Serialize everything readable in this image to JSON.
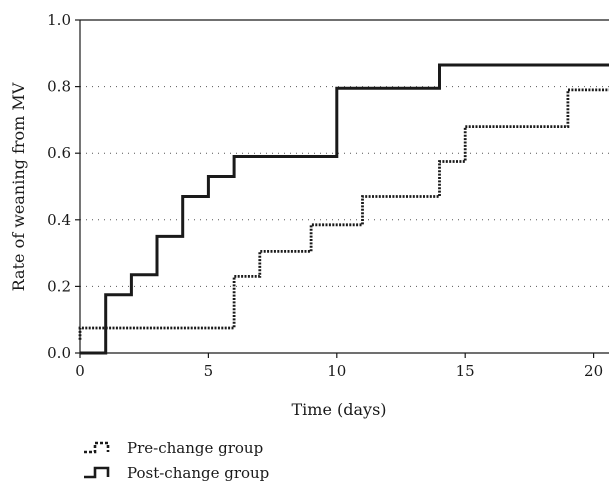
{
  "chart_data": {
    "type": "line",
    "subtype": "step",
    "title": "",
    "xlabel": "Time (days)",
    "ylabel": "Rate of weaning from MV",
    "xlim": [
      0,
      20.6
    ],
    "ylim": [
      0,
      1.0
    ],
    "xticks": [
      0,
      5,
      10,
      15,
      20
    ],
    "yticks": [
      0.0,
      0.2,
      0.4,
      0.6,
      0.8,
      1.0
    ],
    "ytick_labels": [
      "0.0",
      "0.2",
      "0.4",
      "0.6",
      "0.8",
      "1.0"
    ],
    "grid": {
      "horizontal": "dotted",
      "vertical": false
    },
    "legend_position": "bottom-left",
    "series": [
      {
        "name": "Pre-change group",
        "style": "dotted",
        "color": "#1a1a1a",
        "steps": [
          [
            0,
            0.04
          ],
          [
            0,
            0.075
          ],
          [
            6,
            0.075
          ],
          [
            6,
            0.23
          ],
          [
            7,
            0.23
          ],
          [
            7,
            0.305
          ],
          [
            9,
            0.305
          ],
          [
            9,
            0.385
          ],
          [
            11,
            0.385
          ],
          [
            11,
            0.47
          ],
          [
            14,
            0.47
          ],
          [
            14,
            0.575
          ],
          [
            15,
            0.575
          ],
          [
            15,
            0.68
          ],
          [
            19,
            0.68
          ],
          [
            19,
            0.79
          ],
          [
            20.6,
            0.79
          ]
        ]
      },
      {
        "name": "Post-change group",
        "style": "solid",
        "color": "#1a1a1a",
        "steps": [
          [
            0,
            0.0
          ],
          [
            1,
            0.0
          ],
          [
            1,
            0.175
          ],
          [
            2,
            0.175
          ],
          [
            2,
            0.235
          ],
          [
            3,
            0.235
          ],
          [
            3,
            0.35
          ],
          [
            4,
            0.35
          ],
          [
            4,
            0.47
          ],
          [
            5,
            0.47
          ],
          [
            5,
            0.53
          ],
          [
            6,
            0.53
          ],
          [
            6,
            0.59
          ],
          [
            10,
            0.59
          ],
          [
            10,
            0.795
          ],
          [
            14,
            0.795
          ],
          [
            14,
            0.865
          ],
          [
            20.6,
            0.865
          ]
        ]
      }
    ]
  }
}
